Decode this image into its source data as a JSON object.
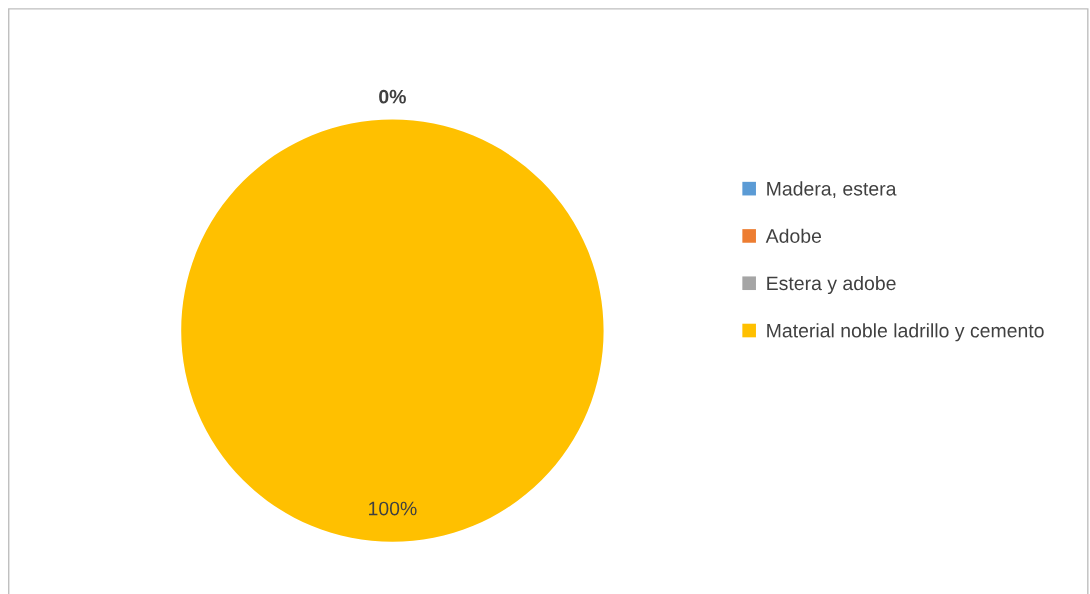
{
  "chart_data": {
    "type": "pie",
    "categories": [
      "Madera, estera",
      "Adobe",
      "Estera y adobe",
      "Material noble ladrillo y cemento"
    ],
    "values": [
      0,
      0,
      0,
      100
    ],
    "colors": [
      "#5b9bd5",
      "#ed7d31",
      "#a5a5a5",
      "#ffc000"
    ],
    "value_labels": [
      "0%",
      null,
      null,
      "100%"
    ],
    "legend": "right"
  }
}
